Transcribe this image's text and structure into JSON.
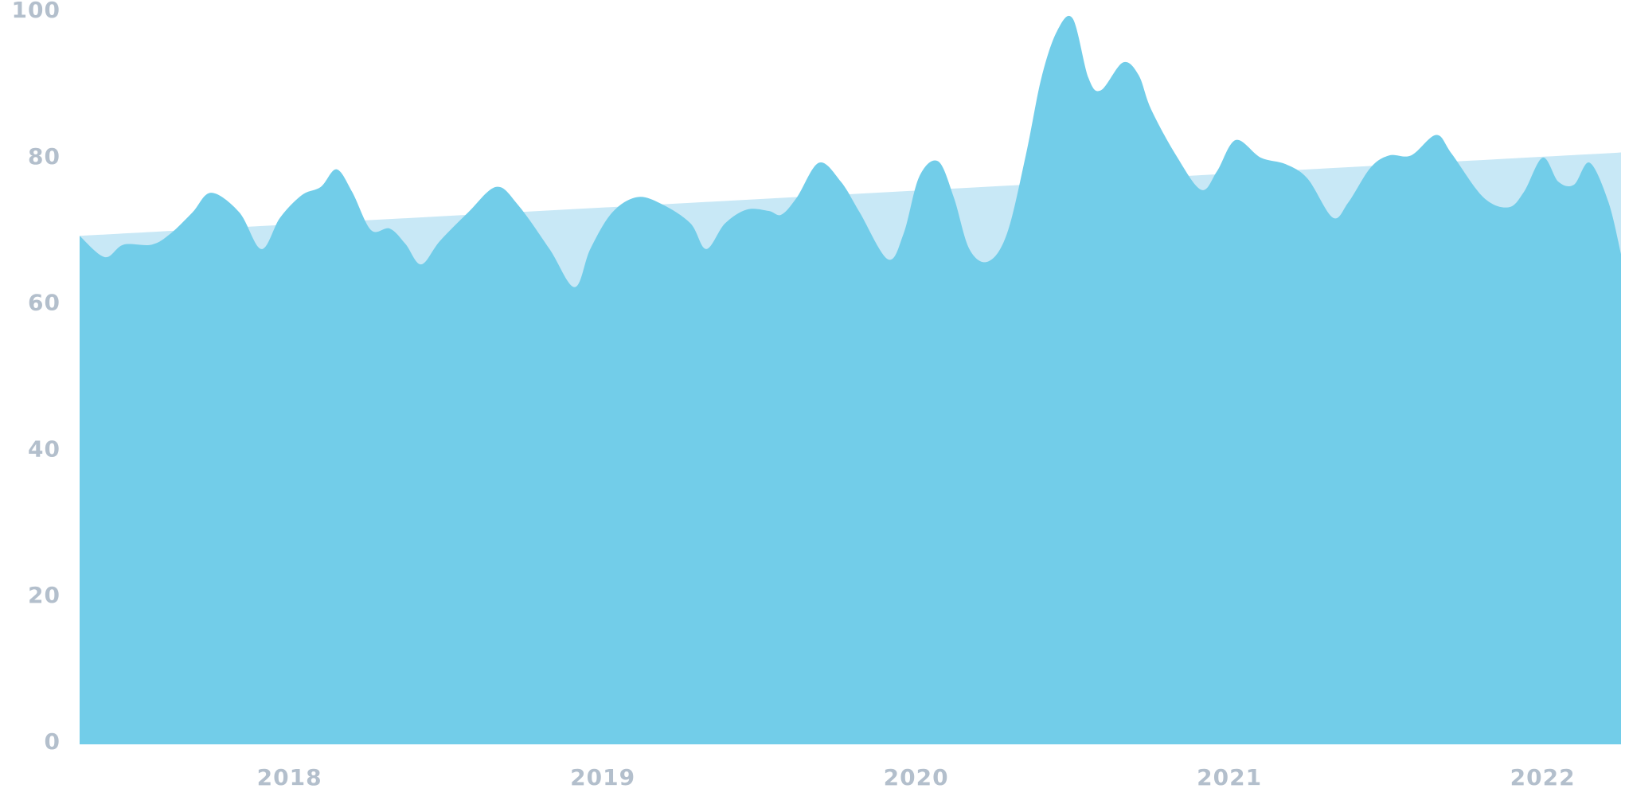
{
  "chart_data": {
    "type": "area",
    "xlim": [
      2017.33,
      2022.25
    ],
    "xticks": [
      2018,
      2019,
      2020,
      2021,
      2022
    ],
    "ylim": [
      0,
      100
    ],
    "yticks": [
      0,
      20,
      40,
      60,
      80,
      100
    ],
    "series": [
      {
        "color": "#c8e8f6",
        "x": [
          2017.33,
          2022.25
        ],
        "values": [
          69.5,
          80.9
        ]
      },
      {
        "color": "#72cde9",
        "x": [
          2017.33,
          2017.41,
          2017.47,
          2017.56,
          2017.62,
          2017.69,
          2017.75,
          2017.84,
          2017.91,
          2017.97,
          2018.04,
          2018.1,
          2018.15,
          2018.2,
          2018.26,
          2018.32,
          2018.37,
          2018.42,
          2018.48,
          2018.57,
          2018.66,
          2018.73,
          2018.83,
          2018.91,
          2018.96,
          2019.03,
          2019.11,
          2019.19,
          2019.28,
          2019.33,
          2019.39,
          2019.46,
          2019.53,
          2019.57,
          2019.62,
          2019.69,
          2019.76,
          2019.82,
          2019.91,
          2019.96,
          2020.01,
          2020.07,
          2020.12,
          2020.17,
          2020.23,
          2020.29,
          2020.35,
          2020.4,
          2020.45,
          2020.5,
          2020.55,
          2020.59,
          2020.66,
          2020.71,
          2020.75,
          2020.83,
          2020.91,
          2020.96,
          2021.02,
          2021.1,
          2021.18,
          2021.25,
          2021.33,
          2021.38,
          2021.45,
          2021.51,
          2021.58,
          2021.66,
          2021.71,
          2021.81,
          2021.89,
          2021.94,
          2022.0,
          2022.05,
          2022.1,
          2022.15,
          2022.21,
          2022.25
        ],
        "values": [
          69.5,
          66.6,
          68.3,
          68.3,
          69.8,
          72.7,
          75.4,
          72.7,
          67.7,
          72.0,
          75.1,
          76.2,
          78.6,
          75.5,
          70.3,
          70.5,
          68.4,
          65.6,
          68.8,
          72.7,
          76.2,
          73.7,
          67.7,
          62.5,
          67.7,
          72.7,
          74.8,
          73.8,
          71.2,
          67.7,
          71.2,
          73.1,
          72.9,
          72.4,
          74.8,
          79.5,
          76.9,
          72.7,
          66.3,
          69.8,
          77.6,
          79.7,
          74.8,
          67.7,
          66.0,
          69.8,
          80.5,
          91.1,
          97.5,
          99.2,
          91.1,
          89.4,
          93.2,
          91.5,
          86.8,
          80.5,
          75.8,
          78.3,
          82.6,
          80.2,
          79.3,
          77.3,
          72.0,
          74.1,
          78.8,
          80.5,
          80.5,
          83.3,
          80.7,
          74.8,
          73.4,
          75.5,
          80.2,
          76.9,
          76.5,
          79.5,
          74.1,
          67.0
        ]
      }
    ]
  }
}
